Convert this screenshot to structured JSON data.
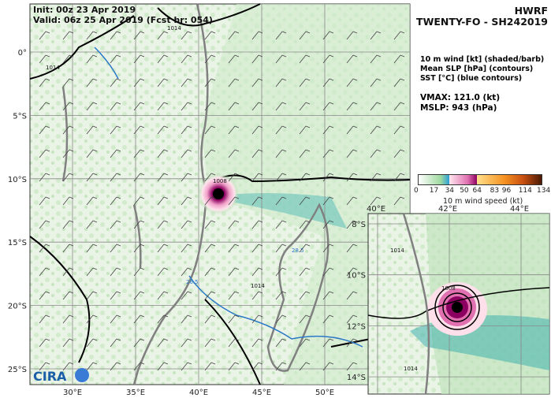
{
  "header": {
    "init": "Init:   00z 23 Apr 2019",
    "valid": "Valid: 06z 25 Apr 2019 (Fcst hr: 054)",
    "model": "HWRF",
    "storm": "TWENTY-FO - SH242019"
  },
  "legend": {
    "lines": [
      "10 m wind [kt] (shaded/barb)",
      "Mean SLP [hPa] (contours)",
      "SST [°C] (blue contours)"
    ],
    "vmax": "VMAX: 121.0 (kt)",
    "mslp": "MSLP:  943 (hPa)"
  },
  "colorbar": {
    "ticks": [
      "0",
      "17",
      "34",
      "50",
      "64",
      "83",
      "96",
      "114",
      "134"
    ],
    "label": "10 m wind speed (kt)",
    "colors": [
      "#ffffff",
      "#9fd9a0",
      "#2a9fd6",
      "#ffd9e6",
      "#e070b0",
      "#8b0060",
      "#ffe08a",
      "#f59020",
      "#c85010",
      "#4a1a05"
    ]
  },
  "main_map": {
    "lon_labels": [
      "30°E",
      "35°E",
      "40°E",
      "45°E",
      "50°E"
    ],
    "lat_labels": [
      "0°",
      "5°S",
      "10°S",
      "15°S",
      "20°S",
      "25°S"
    ],
    "contour_labels": [
      "1014",
      "1014",
      "1008",
      "1014"
    ],
    "sst_labels": [
      "26.5",
      "28.5"
    ]
  },
  "inset_map": {
    "lon_labels": [
      "40°E",
      "42°E",
      "44°E"
    ],
    "lat_labels": [
      "8°S",
      "10°S",
      "12°S",
      "14°S"
    ],
    "contour_labels": [
      "1014",
      "1008",
      "1014"
    ]
  },
  "logo": "CIRA"
}
